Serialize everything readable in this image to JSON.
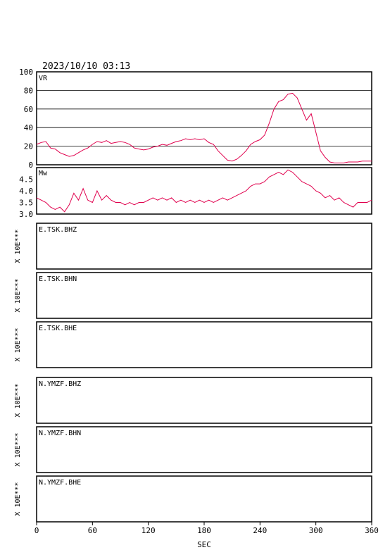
{
  "header": {
    "datetime": "2023/10/10 03:13"
  },
  "chart_data": [
    {
      "type": "line",
      "label": "VR",
      "ylim": [
        0,
        100
      ],
      "yticks": [
        "0",
        "20",
        "40",
        "60",
        "80",
        "100"
      ],
      "xlim": [
        0,
        360
      ],
      "grid": true,
      "color": "#e0004d",
      "x": [
        0,
        5,
        10,
        15,
        20,
        25,
        30,
        35,
        40,
        45,
        50,
        55,
        60,
        65,
        70,
        75,
        80,
        85,
        90,
        95,
        100,
        105,
        110,
        115,
        120,
        125,
        130,
        135,
        140,
        145,
        150,
        155,
        160,
        165,
        170,
        175,
        180,
        185,
        190,
        195,
        200,
        205,
        210,
        215,
        220,
        225,
        230,
        235,
        240,
        245,
        250,
        255,
        260,
        265,
        270,
        275,
        280,
        285,
        290,
        295,
        300,
        305,
        310,
        315,
        320,
        325,
        330,
        335,
        340,
        345,
        350,
        355,
        360
      ],
      "y": [
        22,
        24,
        25,
        18,
        17,
        13,
        11,
        9,
        10,
        13,
        16,
        18,
        22,
        25,
        24,
        26,
        23,
        24,
        25,
        24,
        22,
        18,
        17,
        16,
        17,
        19,
        20,
        22,
        21,
        23,
        25,
        26,
        28,
        27,
        28,
        27,
        28,
        24,
        22,
        15,
        10,
        5,
        4,
        6,
        10,
        15,
        22,
        25,
        27,
        32,
        45,
        60,
        68,
        70,
        76,
        77,
        72,
        60,
        48,
        55,
        35,
        15,
        8,
        3,
        2,
        2,
        2,
        3,
        3,
        3,
        4,
        4,
        4
      ]
    },
    {
      "type": "line",
      "label": "Mw",
      "ylim": [
        3.0,
        5.0
      ],
      "yticks": [
        "3.0",
        "3.5",
        "4.0",
        "4.5"
      ],
      "xlim": [
        0,
        360
      ],
      "grid": false,
      "color": "#e0004d",
      "x": [
        0,
        5,
        10,
        15,
        20,
        25,
        30,
        35,
        40,
        45,
        50,
        55,
        60,
        65,
        70,
        75,
        80,
        85,
        90,
        95,
        100,
        105,
        110,
        115,
        120,
        125,
        130,
        135,
        140,
        145,
        150,
        155,
        160,
        165,
        170,
        175,
        180,
        185,
        190,
        195,
        200,
        205,
        210,
        215,
        220,
        225,
        230,
        235,
        240,
        245,
        250,
        255,
        260,
        265,
        270,
        275,
        280,
        285,
        290,
        295,
        300,
        305,
        310,
        315,
        320,
        325,
        330,
        335,
        340,
        345,
        350,
        355,
        360
      ],
      "y": [
        3.7,
        3.6,
        3.5,
        3.3,
        3.2,
        3.3,
        3.1,
        3.4,
        3.9,
        3.6,
        4.1,
        3.6,
        3.5,
        4.0,
        3.6,
        3.8,
        3.6,
        3.5,
        3.5,
        3.4,
        3.5,
        3.4,
        3.5,
        3.5,
        3.6,
        3.7,
        3.6,
        3.7,
        3.6,
        3.7,
        3.5,
        3.6,
        3.5,
        3.6,
        3.5,
        3.6,
        3.5,
        3.6,
        3.5,
        3.6,
        3.7,
        3.6,
        3.7,
        3.8,
        3.9,
        4.0,
        4.2,
        4.3,
        4.3,
        4.4,
        4.6,
        4.7,
        4.8,
        4.7,
        4.9,
        4.8,
        4.6,
        4.4,
        4.3,
        4.2,
        4.0,
        3.9,
        3.7,
        3.8,
        3.6,
        3.7,
        3.5,
        3.4,
        3.3,
        3.5,
        3.5,
        3.5,
        3.6
      ]
    }
  ],
  "traces": [
    {
      "station": "E.TSK.BHZ",
      "scale_label": "X 10E***"
    },
    {
      "station": "E.TSK.BHN",
      "scale_label": "X 10E***"
    },
    {
      "station": "E.TSK.BHE",
      "scale_label": "X 10E***"
    },
    {
      "station": "N.YMZF.BHZ",
      "scale_label": "X 10E***"
    },
    {
      "station": "N.YMZF.BHN",
      "scale_label": "X 10E***"
    },
    {
      "station": "N.YMZF.BHE",
      "scale_label": "X 10E***"
    }
  ],
  "x_axis": {
    "label": "SEC",
    "ticks": [
      "0",
      "60",
      "120",
      "180",
      "240",
      "300",
      "360"
    ],
    "values": [
      0,
      60,
      120,
      180,
      240,
      300,
      360
    ]
  }
}
